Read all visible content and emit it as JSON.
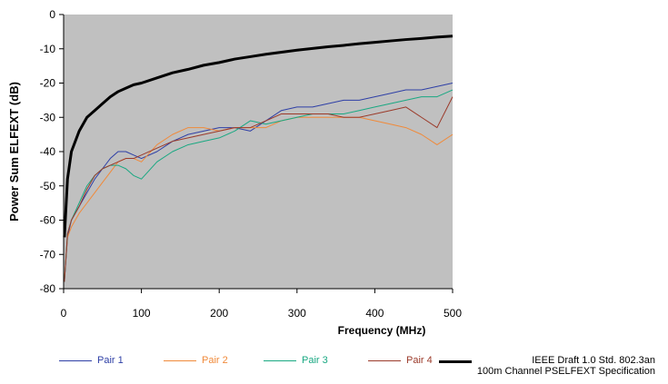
{
  "chart_data": {
    "type": "line",
    "xlabel": "Frequency (MHz)",
    "ylabel": "Power Sum ELFEXT (dB)",
    "x": [
      1,
      5,
      10,
      20,
      30,
      40,
      50,
      60,
      70,
      80,
      90,
      100,
      120,
      140,
      160,
      180,
      200,
      220,
      240,
      260,
      280,
      300,
      320,
      340,
      360,
      380,
      400,
      420,
      440,
      460,
      480,
      500
    ],
    "series": [
      {
        "name": "Pair 1",
        "color": "#2e3fa6",
        "width": 1,
        "values": [
          -78,
          -65,
          -60,
          -56,
          -52,
          -48,
          -45,
          -42,
          -40,
          -40,
          -41,
          -42,
          -40,
          -37,
          -35,
          -34,
          -33,
          -33,
          -34,
          -31,
          -28,
          -27,
          -27,
          -26,
          -25,
          -25,
          -24,
          -23,
          -22,
          -22,
          -21,
          -20
        ]
      },
      {
        "name": "Pair 2",
        "color": "#f08a3a",
        "width": 1,
        "values": [
          -77,
          -65,
          -62,
          -58,
          -55,
          -52,
          -49,
          -46,
          -43,
          -42,
          -42,
          -43,
          -38,
          -35,
          -33,
          -33,
          -34,
          -33,
          -33,
          -33,
          -31,
          -30,
          -30,
          -30,
          -30,
          -30,
          -31,
          -32,
          -33,
          -35,
          -38,
          -35
        ]
      },
      {
        "name": "Pair 3",
        "color": "#19a882",
        "width": 1,
        "values": [
          -78,
          -64,
          -60,
          -55,
          -50,
          -47,
          -45,
          -44,
          -44,
          -45,
          -47,
          -48,
          -43,
          -40,
          -38,
          -37,
          -36,
          -34,
          -31,
          -32,
          -31,
          -30,
          -29,
          -29,
          -29,
          -28,
          -27,
          -26,
          -25,
          -24,
          -24,
          -22
        ]
      },
      {
        "name": "Pair 4",
        "color": "#9b3a2a",
        "width": 1,
        "values": [
          -78,
          -64,
          -60,
          -56,
          -51,
          -47,
          -45,
          -44,
          -43,
          -42,
          -42,
          -41,
          -39,
          -37,
          -36,
          -35,
          -34,
          -33,
          -33,
          -31,
          -29,
          -29,
          -29,
          -29,
          -30,
          -30,
          -29,
          -28,
          -27,
          -30,
          -33,
          -24
        ]
      },
      {
        "name": "IEEE Draft 1.0 Std. 802.3an\n100m Channel PSELFEXT Specification",
        "color": "#000000",
        "width": 3,
        "values": [
          -65,
          -48,
          -40,
          -34,
          -30,
          -28,
          -26,
          -24,
          -22.5,
          -21.5,
          -20.5,
          -20,
          -18.5,
          -17,
          -16,
          -14.8,
          -14,
          -13,
          -12.3,
          -11.6,
          -11,
          -10.4,
          -9.9,
          -9.4,
          -9,
          -8.5,
          -8.1,
          -7.7,
          -7.3,
          -7,
          -6.6,
          -6.3
        ]
      }
    ],
    "xlim": [
      0,
      500
    ],
    "xticks": [
      0,
      100,
      200,
      300,
      400,
      500
    ],
    "ylim": [
      -80,
      0
    ],
    "yticks": [
      -80,
      -70,
      -60,
      -50,
      -40,
      -30,
      -20,
      -10,
      0
    ],
    "plot_background": "#c0c0c0"
  }
}
